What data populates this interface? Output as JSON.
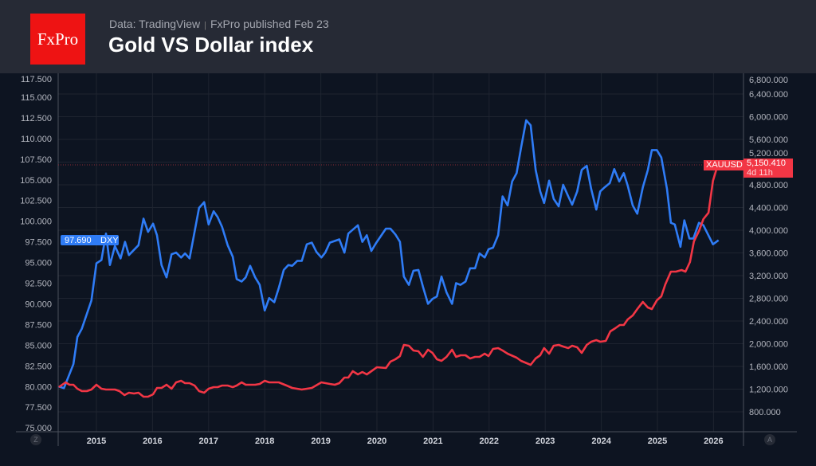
{
  "header": {
    "logo_text": "FxPro",
    "source": "Data: TradingView",
    "published": "FxPro published Feb 23",
    "title": "Gold VS Dollar index"
  },
  "colors": {
    "dxy": "#2f7cf6",
    "gold": "#f23645",
    "background": "#0d1421",
    "header": "#262a35"
  },
  "axis_buttons": {
    "left": "Z",
    "right": "A"
  },
  "chart_data": {
    "type": "line",
    "title": "Gold VS Dollar index",
    "grid": true,
    "x_ticks": [
      "2015",
      "2016",
      "2017",
      "2018",
      "2019",
      "2020",
      "2021",
      "2022",
      "2023",
      "2024",
      "2025",
      "2026"
    ],
    "xlim": [
      2014.33,
      2026.6
    ],
    "left_axis": {
      "ylim": [
        75,
        117.5
      ],
      "ticks": [
        "117.500",
        "115.000",
        "112.500",
        "110.000",
        "107.500",
        "105.000",
        "102.500",
        "100.000",
        "97.500",
        "95.000",
        "92.500",
        "90.000",
        "87.500",
        "85.000",
        "82.500",
        "80.000",
        "77.500",
        "75.000"
      ]
    },
    "right_axis": {
      "ylim": [
        600,
        6800
      ],
      "ticks": [
        "6,800.000",
        "6,400.000",
        "6,000.000",
        "5,600.000",
        "5,200.000",
        "4,800.000",
        "4,400.000",
        "4,000.000",
        "3,600.000",
        "3,200.000",
        "2,800.000",
        "2,400.000",
        "2,000.000",
        "1,600.000",
        "1,200.000",
        "800.000"
      ]
    },
    "series": [
      {
        "name": "DXY",
        "axis": "left",
        "last_value": "97.690",
        "x": [
          2014.33,
          2014.42,
          2014.59,
          2014.66,
          2014.74,
          2014.91,
          2015.0,
          2015.09,
          2015.17,
          2015.24,
          2015.33,
          2015.43,
          2015.51,
          2015.58,
          2015.75,
          2015.84,
          2015.92,
          2016.01,
          2016.08,
          2016.16,
          2016.25,
          2016.34,
          2016.42,
          2016.51,
          2016.58,
          2016.66,
          2016.83,
          2016.92,
          2017.0,
          2017.09,
          2017.16,
          2017.24,
          2017.34,
          2017.43,
          2017.5,
          2017.59,
          2017.66,
          2017.74,
          2017.83,
          2017.91,
          2018.0,
          2018.08,
          2018.17,
          2018.25,
          2018.34,
          2018.42,
          2018.49,
          2018.58,
          2018.66,
          2018.75,
          2018.84,
          2018.92,
          2019.01,
          2019.08,
          2019.16,
          2019.33,
          2019.42,
          2019.49,
          2019.66,
          2019.74,
          2019.82,
          2019.9,
          2019.99,
          2020.16,
          2020.24,
          2020.33,
          2020.41,
          2020.48,
          2020.57,
          2020.65,
          2020.74,
          2020.82,
          2020.91,
          2020.99,
          2021.07,
          2021.15,
          2021.24,
          2021.34,
          2021.41,
          2021.49,
          2021.58,
          2021.66,
          2021.75,
          2021.83,
          2021.92,
          2021.99,
          2022.07,
          2022.16,
          2022.24,
          2022.33,
          2022.41,
          2022.49,
          2022.57,
          2022.66,
          2022.74,
          2022.83,
          2022.91,
          2022.98,
          2023.07,
          2023.15,
          2023.24,
          2023.32,
          2023.41,
          2023.48,
          2023.57,
          2023.65,
          2023.74,
          2023.82,
          2023.91,
          2023.98,
          2024.06,
          2024.15,
          2024.23,
          2024.32,
          2024.4,
          2024.47,
          2024.56,
          2024.64,
          2024.74,
          2024.83,
          2024.9,
          2024.99,
          2025.07,
          2025.17,
          2025.24,
          2025.31,
          2025.41,
          2025.48,
          2025.57,
          2025.64,
          2025.74,
          2025.82,
          2025.99,
          2026.09
        ],
        "values": [
          80.0,
          79.8,
          82.7,
          86.0,
          87.0,
          90.4,
          94.9,
          95.3,
          98.5,
          94.7,
          97.0,
          95.5,
          97.5,
          95.9,
          97.1,
          100.3,
          98.7,
          99.7,
          98.3,
          94.7,
          93.2,
          96.0,
          96.2,
          95.6,
          96.1,
          95.5,
          101.6,
          102.3,
          99.6,
          101.2,
          100.5,
          99.3,
          97.1,
          95.7,
          93.0,
          92.7,
          93.2,
          94.6,
          93.2,
          92.3,
          89.2,
          90.7,
          90.2,
          91.9,
          94.1,
          94.7,
          94.6,
          95.2,
          95.2,
          97.2,
          97.4,
          96.3,
          95.6,
          96.2,
          97.4,
          97.8,
          96.2,
          98.5,
          99.5,
          97.5,
          98.3,
          96.4,
          97.4,
          99.1,
          99.1,
          98.4,
          97.5,
          93.3,
          92.3,
          94.0,
          94.1,
          92.1,
          90.0,
          90.6,
          90.9,
          93.3,
          91.4,
          90.0,
          92.5,
          92.3,
          92.7,
          94.3,
          94.3,
          96.1,
          95.6,
          96.6,
          96.8,
          98.3,
          103.0,
          101.9,
          104.8,
          105.8,
          108.9,
          112.2,
          111.6,
          106.2,
          103.6,
          102.2,
          104.9,
          102.7,
          101.8,
          104.4,
          103.0,
          102.0,
          103.6,
          106.2,
          106.7,
          103.9,
          101.4,
          103.6,
          104.1,
          104.6,
          106.3,
          104.8,
          105.8,
          104.3,
          101.9,
          100.9,
          104.1,
          106.2,
          108.6,
          108.6,
          107.7,
          103.9,
          99.8,
          99.6,
          96.9,
          100.1,
          97.9,
          97.9,
          99.8,
          99.5,
          97.2,
          97.69
        ]
      },
      {
        "name": "XAUUSD",
        "axis": "right",
        "last_value": "5,150.410",
        "countdown": "4d 11h",
        "x": [
          2014.33,
          2014.45,
          2014.52,
          2014.59,
          2014.66,
          2014.74,
          2014.83,
          2014.91,
          2015.0,
          2015.09,
          2015.17,
          2015.33,
          2015.41,
          2015.5,
          2015.58,
          2015.67,
          2015.75,
          2015.84,
          2015.92,
          2016.01,
          2016.08,
          2016.16,
          2016.25,
          2016.34,
          2016.42,
          2016.51,
          2016.58,
          2016.66,
          2016.75,
          2016.83,
          2016.92,
          2017.0,
          2017.09,
          2017.16,
          2017.24,
          2017.34,
          2017.43,
          2017.5,
          2017.59,
          2017.66,
          2017.83,
          2017.91,
          2018.0,
          2018.08,
          2018.25,
          2018.39,
          2018.49,
          2018.66,
          2018.84,
          2019.01,
          2019.16,
          2019.25,
          2019.33,
          2019.42,
          2019.49,
          2019.57,
          2019.66,
          2019.74,
          2019.82,
          2019.9,
          2020.0,
          2020.16,
          2020.24,
          2020.33,
          2020.41,
          2020.48,
          2020.57,
          2020.65,
          2020.74,
          2020.82,
          2020.91,
          2020.99,
          2021.07,
          2021.15,
          2021.24,
          2021.34,
          2021.41,
          2021.49,
          2021.58,
          2021.66,
          2021.75,
          2021.83,
          2021.92,
          2021.99,
          2022.07,
          2022.16,
          2022.24,
          2022.33,
          2022.49,
          2022.57,
          2022.74,
          2022.83,
          2022.91,
          2022.98,
          2023.07,
          2023.15,
          2023.24,
          2023.32,
          2023.41,
          2023.48,
          2023.57,
          2023.65,
          2023.74,
          2023.82,
          2023.91,
          2023.98,
          2024.08,
          2024.16,
          2024.25,
          2024.33,
          2024.4,
          2024.47,
          2024.56,
          2024.64,
          2024.74,
          2024.83,
          2024.9,
          2024.99,
          2025.07,
          2025.14,
          2025.24,
          2025.33,
          2025.43,
          2025.5,
          2025.58,
          2025.65,
          2025.74,
          2025.82,
          2025.91,
          2025.99,
          2026.05,
          2026.09
        ],
        "values": [
          1235,
          1319,
          1277,
          1277,
          1207,
          1165,
          1165,
          1193,
          1277,
          1207,
          1193,
          1193,
          1165,
          1095,
          1137,
          1123,
          1137,
          1067,
          1067,
          1109,
          1221,
          1221,
          1277,
          1207,
          1319,
          1347,
          1305,
          1305,
          1263,
          1165,
          1137,
          1207,
          1235,
          1235,
          1263,
          1263,
          1235,
          1263,
          1319,
          1277,
          1277,
          1291,
          1347,
          1319,
          1319,
          1263,
          1221,
          1193,
          1221,
          1319,
          1291,
          1277,
          1305,
          1404,
          1404,
          1516,
          1460,
          1502,
          1460,
          1516,
          1586,
          1572,
          1684,
          1726,
          1782,
          1979,
          1965,
          1881,
          1867,
          1768,
          1895,
          1839,
          1726,
          1698,
          1768,
          1895,
          1768,
          1797,
          1797,
          1740,
          1768,
          1768,
          1825,
          1782,
          1909,
          1923,
          1881,
          1825,
          1754,
          1698,
          1628,
          1740,
          1797,
          1923,
          1825,
          1965,
          1979,
          1951,
          1923,
          1965,
          1937,
          1839,
          1979,
          2035,
          2063,
          2035,
          2049,
          2218,
          2274,
          2330,
          2330,
          2428,
          2498,
          2611,
          2737,
          2639,
          2611,
          2765,
          2835,
          3046,
          3270,
          3270,
          3298,
          3270,
          3439,
          3804,
          3986,
          4197,
          4309,
          4870,
          5067,
          5150.41
        ]
      }
    ]
  }
}
